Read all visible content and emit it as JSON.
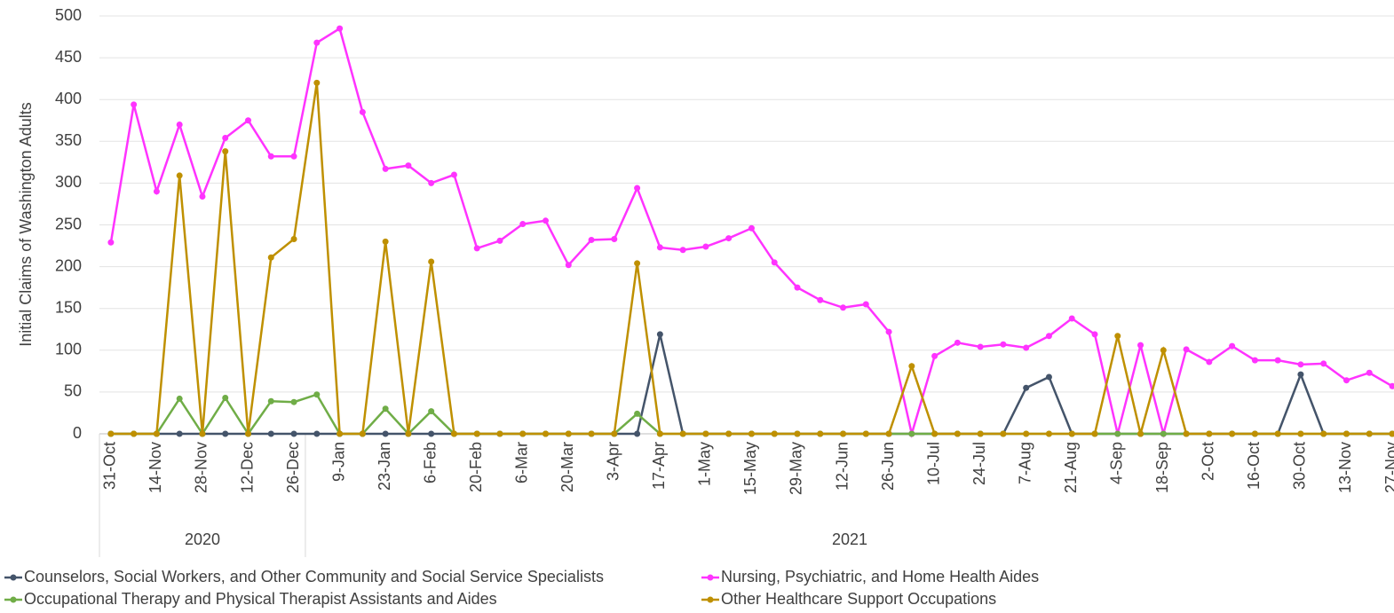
{
  "chart_data": {
    "type": "line",
    "y_label": "Initial Claims of Washington Adults",
    "categories": [
      "31-Oct",
      null,
      "14-Nov",
      null,
      "28-Nov",
      null,
      "12-Dec",
      null,
      "26-Dec",
      null,
      "9-Jan",
      null,
      "23-Jan",
      null,
      "6-Feb",
      null,
      "20-Feb",
      null,
      "6-Mar",
      null,
      "20-Mar",
      null,
      "3-Apr",
      null,
      "17-Apr",
      null,
      "1-May",
      null,
      "15-May",
      null,
      "29-May",
      null,
      "12-Jun",
      null,
      "26-Jun",
      null,
      "10-Jul",
      null,
      "24-Jul",
      null,
      "7-Aug",
      null,
      "21-Aug",
      null,
      "4-Sep",
      null,
      "18-Sep",
      null,
      "2-Oct",
      null,
      "16-Oct",
      null,
      "30-Oct",
      null,
      "13-Nov",
      null,
      "27-Nov"
    ],
    "years": [
      {
        "label": "2020",
        "count": 9
      },
      {
        "label": "2021",
        "count": 48
      }
    ],
    "series": [
      {
        "name": "Counselors, Social Workers, and Other Community and Social Service Specialists",
        "color": "#44546a",
        "values": [
          0,
          0,
          0,
          0,
          0,
          0,
          0,
          0,
          0,
          0,
          0,
          0,
          0,
          0,
          0,
          0,
          0,
          0,
          0,
          0,
          0,
          0,
          0,
          0,
          119,
          0,
          0,
          0,
          0,
          0,
          0,
          0,
          0,
          0,
          0,
          0,
          0,
          0,
          0,
          0,
          55,
          68,
          0,
          0,
          0,
          0,
          0,
          0,
          0,
          0,
          0,
          0,
          71,
          0,
          0,
          0,
          0
        ]
      },
      {
        "name": "Nursing, Psychiatric, and Home Health Aides",
        "color": "#ff33ff",
        "values": [
          229,
          394,
          290,
          370,
          284,
          354,
          375,
          332,
          332,
          468,
          485,
          385,
          317,
          321,
          300,
          310,
          222,
          231,
          251,
          255,
          202,
          232,
          233,
          294,
          223,
          220,
          224,
          234,
          246,
          205,
          175,
          160,
          151,
          155,
          122,
          0,
          93,
          109,
          104,
          107,
          103,
          117,
          138,
          119,
          0,
          106,
          0,
          101,
          86,
          105,
          88,
          88,
          83,
          84,
          64,
          73,
          57
        ]
      },
      {
        "name": "Occupational Therapy and Physical Therapist Assistants and Aides",
        "color": "#70ad47",
        "values": [
          0,
          0,
          0,
          42,
          0,
          43,
          0,
          39,
          38,
          47,
          0,
          0,
          30,
          0,
          27,
          0,
          0,
          0,
          0,
          0,
          0,
          0,
          0,
          24,
          0,
          0,
          0,
          0,
          0,
          0,
          0,
          0,
          0,
          0,
          0,
          0,
          0,
          0,
          0,
          0,
          0,
          0,
          0,
          0,
          0,
          0,
          0,
          0,
          0,
          0,
          0,
          0,
          0,
          0,
          0,
          0,
          0
        ]
      },
      {
        "name": "Other Healthcare Support Occupations",
        "color": "#bf9000",
        "values": [
          0,
          0,
          0,
          309,
          0,
          338,
          0,
          211,
          233,
          420,
          0,
          0,
          230,
          0,
          206,
          0,
          0,
          0,
          0,
          0,
          0,
          0,
          0,
          204,
          0,
          0,
          0,
          0,
          0,
          0,
          0,
          0,
          0,
          0,
          0,
          81,
          0,
          0,
          0,
          0,
          0,
          0,
          0,
          0,
          117,
          0,
          100,
          0,
          0,
          0,
          0,
          0,
          0,
          0,
          0,
          0,
          0
        ]
      }
    ],
    "ylim": [
      0,
      500
    ],
    "yticks": [
      0,
      50,
      100,
      150,
      200,
      250,
      300,
      350,
      400,
      450,
      500
    ],
    "grid": true
  }
}
